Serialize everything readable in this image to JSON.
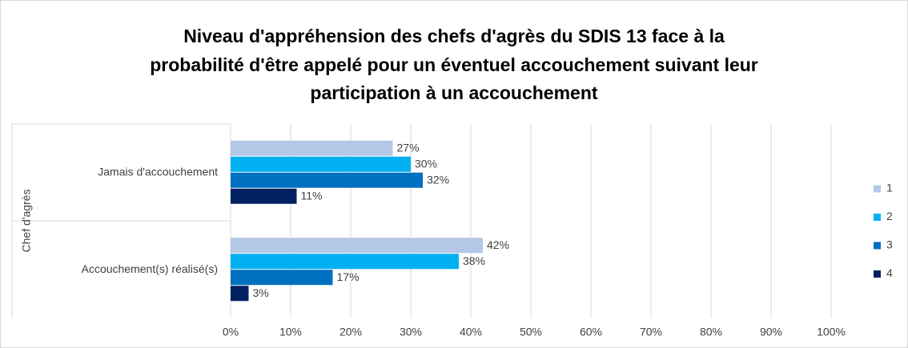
{
  "chart_data": {
    "type": "hbar",
    "title": [
      "Niveau d'appréhension des chefs d'agrès du SDIS 13 face à la",
      "probabilité d'être appelé pour un éventuel accouchement suivant leur",
      "participation à un accouchement"
    ],
    "ylabel": "Chef d'agrès",
    "categories": [
      "Jamais d'accouchement",
      "Accouchement(s) réalisé(s)"
    ],
    "series": [
      {
        "name": "1",
        "color": "#b4c7e7",
        "values": [
          27,
          42
        ],
        "value_labels": [
          "27%",
          "42%"
        ]
      },
      {
        "name": "2",
        "color": "#00b0f0",
        "values": [
          30,
          38
        ],
        "value_labels": [
          "30%",
          "38%"
        ]
      },
      {
        "name": "3",
        "color": "#0070c0",
        "values": [
          32,
          17
        ],
        "value_labels": [
          "32%",
          "17%"
        ]
      },
      {
        "name": "4",
        "color": "#002060",
        "values": [
          11,
          3
        ],
        "value_labels": [
          "11%",
          "3%"
        ]
      }
    ],
    "xlim": [
      0,
      100
    ],
    "xticks": [
      {
        "value": 0,
        "label": "0%"
      },
      {
        "value": 10,
        "label": "10%"
      },
      {
        "value": 20,
        "label": "20%"
      },
      {
        "value": 30,
        "label": "30%"
      },
      {
        "value": 40,
        "label": "40%"
      },
      {
        "value": 50,
        "label": "50%"
      },
      {
        "value": 60,
        "label": "60%"
      },
      {
        "value": 70,
        "label": "70%"
      },
      {
        "value": 80,
        "label": "80%"
      },
      {
        "value": 90,
        "label": "90%"
      },
      {
        "value": 100,
        "label": "100%"
      }
    ],
    "grid": true,
    "legend": "right"
  }
}
